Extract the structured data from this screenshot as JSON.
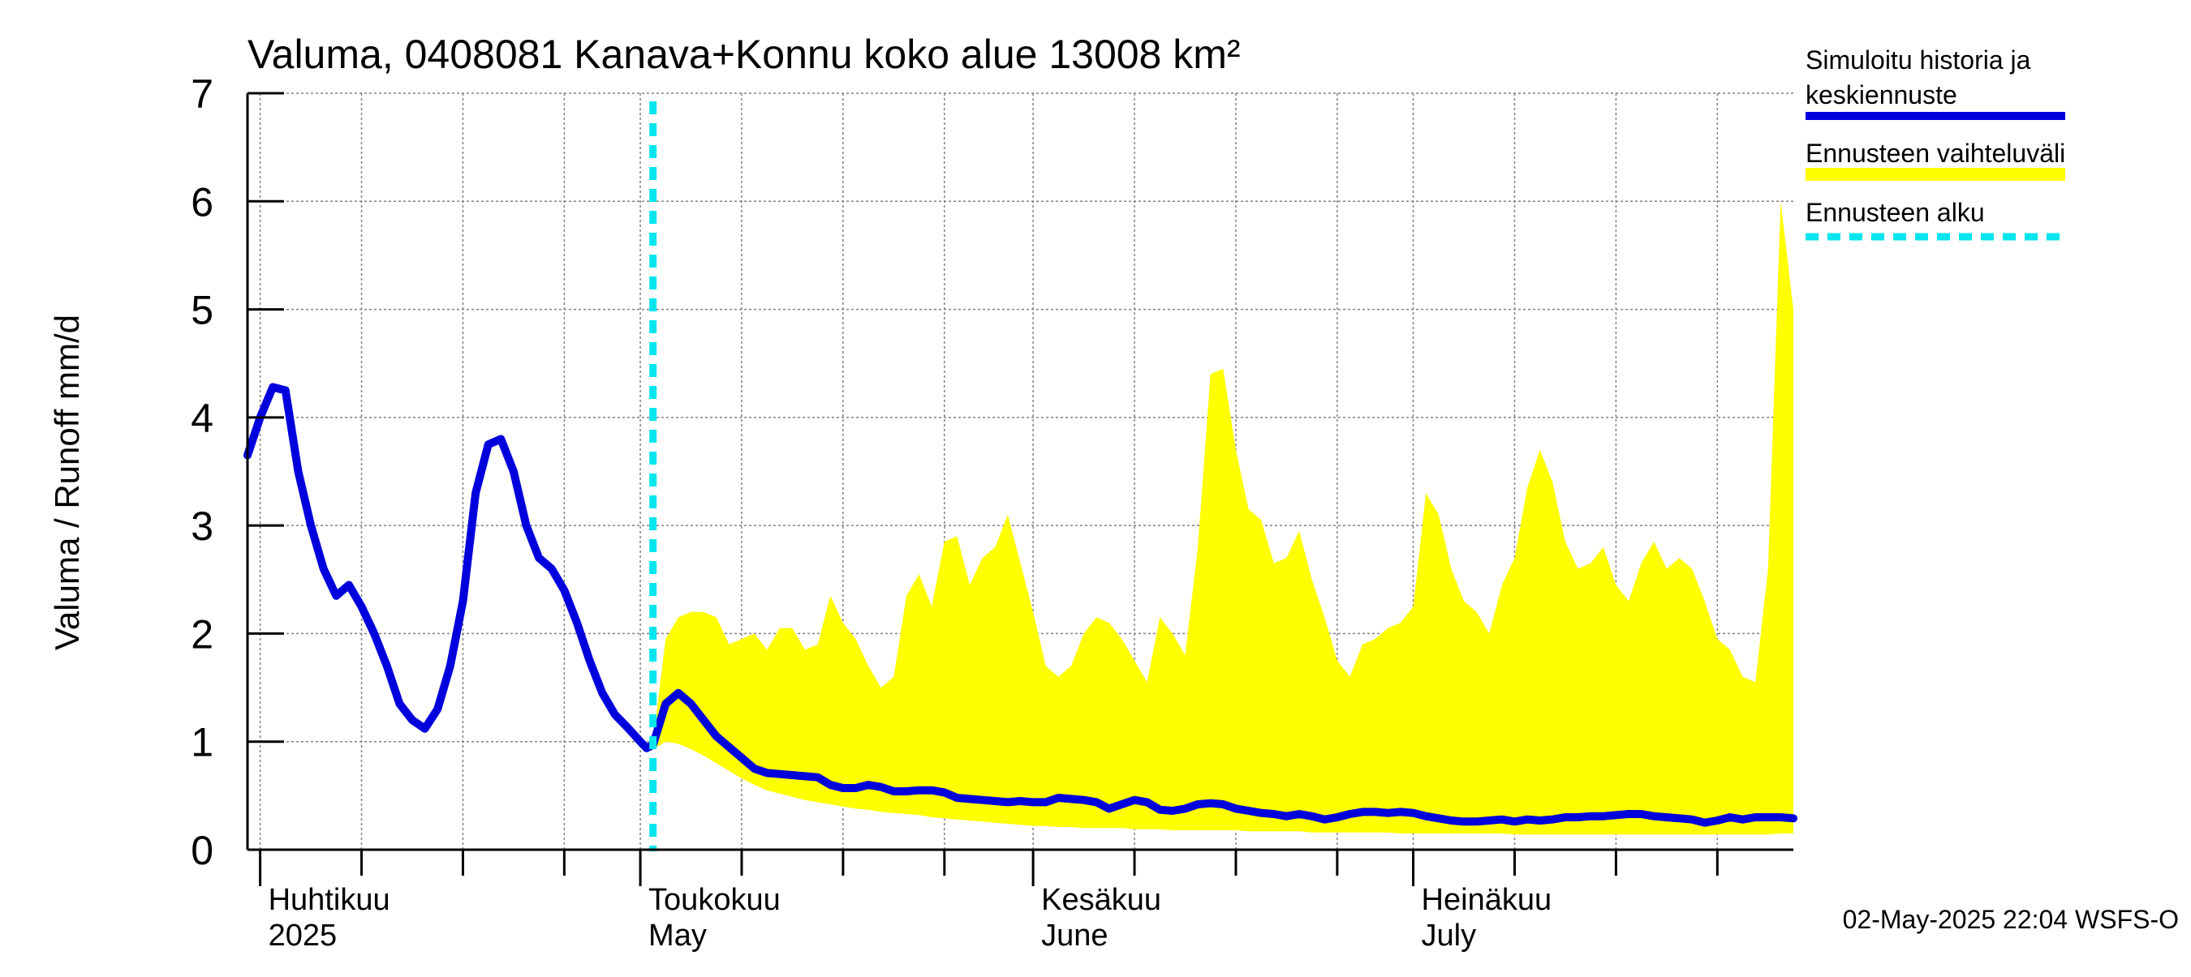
{
  "colors": {
    "background": "#ffffff",
    "history_line": "#0000dd",
    "forecast_band": "#ffff00",
    "forecast_start": "#00e5ee",
    "grid": "#808080",
    "axis": "#000000"
  },
  "chart_data": {
    "type": "line",
    "title": "Valuma, 0408081 Kanava+Konnu koko alue 13008 km²",
    "ylabel": "Valuma / Runoff    mm/d",
    "xlabel": "",
    "ylim": [
      0,
      7
    ],
    "xlim": [
      "2025-03-31",
      "2025-07-31"
    ],
    "y_ticks": [
      0,
      1,
      2,
      3,
      4,
      5,
      6,
      7
    ],
    "grid": true,
    "legend_position": "right",
    "legend": {
      "history_label_line1": "Simuloitu historia ja",
      "history_label_line2": "keskiennuste",
      "band_label": "Ennusteen vaihteluväli",
      "start_label": "Ennusteen alku"
    },
    "month_labels": [
      {
        "date": "2025-04-01",
        "fi": "Huhtikuu",
        "en": "2025"
      },
      {
        "date": "2025-05-01",
        "fi": "Toukokuu",
        "en": "May"
      },
      {
        "date": "2025-06-01",
        "fi": "Kesäkuu",
        "en": "June"
      },
      {
        "date": "2025-07-01",
        "fi": "Heinäkuu",
        "en": "July"
      }
    ],
    "forecast_start": "2025-05-02",
    "timestamp": "02-May-2025 22:04 WSFS-O",
    "series": [
      {
        "name": "Simuloitu historia ja keskiennuste",
        "points": [
          [
            "2025-03-31",
            3.65
          ],
          [
            "2025-04-01",
            4.0
          ],
          [
            "2025-04-02",
            4.28
          ],
          [
            "2025-04-03",
            4.25
          ],
          [
            "2025-04-04",
            3.5
          ],
          [
            "2025-04-05",
            3.0
          ],
          [
            "2025-04-06",
            2.6
          ],
          [
            "2025-04-07",
            2.35
          ],
          [
            "2025-04-08",
            2.45
          ],
          [
            "2025-04-09",
            2.25
          ],
          [
            "2025-04-10",
            2.0
          ],
          [
            "2025-04-11",
            1.7
          ],
          [
            "2025-04-12",
            1.35
          ],
          [
            "2025-04-13",
            1.2
          ],
          [
            "2025-04-14",
            1.12
          ],
          [
            "2025-04-15",
            1.3
          ],
          [
            "2025-04-16",
            1.7
          ],
          [
            "2025-04-17",
            2.3
          ],
          [
            "2025-04-18",
            3.3
          ],
          [
            "2025-04-19",
            3.75
          ],
          [
            "2025-04-20",
            3.8
          ],
          [
            "2025-04-21",
            3.5
          ],
          [
            "2025-04-22",
            3.0
          ],
          [
            "2025-04-23",
            2.7
          ],
          [
            "2025-04-24",
            2.6
          ],
          [
            "2025-04-25",
            2.4
          ],
          [
            "2025-04-26",
            2.1
          ],
          [
            "2025-04-27",
            1.75
          ],
          [
            "2025-04-28",
            1.45
          ],
          [
            "2025-04-29",
            1.25
          ],
          [
            "2025-04-30",
            1.13
          ],
          [
            "2025-05-01",
            1.0
          ],
          [
            "2025-05-01.5",
            0.94
          ],
          [
            "2025-05-02",
            0.97
          ],
          [
            "2025-05-03",
            1.35
          ],
          [
            "2025-05-04",
            1.45
          ],
          [
            "2025-05-05",
            1.35
          ],
          [
            "2025-05-06",
            1.2
          ],
          [
            "2025-05-07",
            1.05
          ],
          [
            "2025-05-08",
            0.95
          ],
          [
            "2025-05-09",
            0.85
          ],
          [
            "2025-05-10",
            0.75
          ],
          [
            "2025-05-11",
            0.71
          ],
          [
            "2025-05-12",
            0.7
          ],
          [
            "2025-05-13",
            0.69
          ],
          [
            "2025-05-14",
            0.68
          ],
          [
            "2025-05-15",
            0.67
          ],
          [
            "2025-05-16",
            0.6
          ],
          [
            "2025-05-17",
            0.57
          ],
          [
            "2025-05-18",
            0.57
          ],
          [
            "2025-05-19",
            0.6
          ],
          [
            "2025-05-20",
            0.58
          ],
          [
            "2025-05-21",
            0.54
          ],
          [
            "2025-05-22",
            0.54
          ],
          [
            "2025-05-23",
            0.55
          ],
          [
            "2025-05-24",
            0.55
          ],
          [
            "2025-05-25",
            0.53
          ],
          [
            "2025-05-26",
            0.48
          ],
          [
            "2025-05-27",
            0.47
          ],
          [
            "2025-05-28",
            0.46
          ],
          [
            "2025-05-29",
            0.45
          ],
          [
            "2025-05-30",
            0.44
          ],
          [
            "2025-05-31",
            0.45
          ],
          [
            "2025-06-01",
            0.44
          ],
          [
            "2025-06-02",
            0.44
          ],
          [
            "2025-06-03",
            0.48
          ],
          [
            "2025-06-04",
            0.47
          ],
          [
            "2025-06-05",
            0.46
          ],
          [
            "2025-06-06",
            0.44
          ],
          [
            "2025-06-07",
            0.38
          ],
          [
            "2025-06-08",
            0.42
          ],
          [
            "2025-06-09",
            0.46
          ],
          [
            "2025-06-10",
            0.44
          ],
          [
            "2025-06-11",
            0.37
          ],
          [
            "2025-06-12",
            0.36
          ],
          [
            "2025-06-13",
            0.38
          ],
          [
            "2025-06-14",
            0.42
          ],
          [
            "2025-06-15",
            0.43
          ],
          [
            "2025-06-16",
            0.42
          ],
          [
            "2025-06-17",
            0.38
          ],
          [
            "2025-06-18",
            0.36
          ],
          [
            "2025-06-19",
            0.34
          ],
          [
            "2025-06-20",
            0.33
          ],
          [
            "2025-06-21",
            0.31
          ],
          [
            "2025-06-22",
            0.33
          ],
          [
            "2025-06-23",
            0.31
          ],
          [
            "2025-06-24",
            0.28
          ],
          [
            "2025-06-25",
            0.3
          ],
          [
            "2025-06-26",
            0.33
          ],
          [
            "2025-06-27",
            0.35
          ],
          [
            "2025-06-28",
            0.35
          ],
          [
            "2025-06-29",
            0.34
          ],
          [
            "2025-06-30",
            0.35
          ],
          [
            "2025-07-01",
            0.34
          ],
          [
            "2025-07-02",
            0.31
          ],
          [
            "2025-07-03",
            0.29
          ],
          [
            "2025-07-04",
            0.27
          ],
          [
            "2025-07-05",
            0.26
          ],
          [
            "2025-07-06",
            0.26
          ],
          [
            "2025-07-07",
            0.27
          ],
          [
            "2025-07-08",
            0.28
          ],
          [
            "2025-07-09",
            0.26
          ],
          [
            "2025-07-10",
            0.28
          ],
          [
            "2025-07-11",
            0.27
          ],
          [
            "2025-07-12",
            0.28
          ],
          [
            "2025-07-13",
            0.3
          ],
          [
            "2025-07-14",
            0.3
          ],
          [
            "2025-07-15",
            0.31
          ],
          [
            "2025-07-16",
            0.31
          ],
          [
            "2025-07-17",
            0.32
          ],
          [
            "2025-07-18",
            0.33
          ],
          [
            "2025-07-19",
            0.33
          ],
          [
            "2025-07-20",
            0.31
          ],
          [
            "2025-07-21",
            0.3
          ],
          [
            "2025-07-22",
            0.29
          ],
          [
            "2025-07-23",
            0.28
          ],
          [
            "2025-07-24",
            0.25
          ],
          [
            "2025-07-25",
            0.27
          ],
          [
            "2025-07-26",
            0.3
          ],
          [
            "2025-07-27",
            0.28
          ],
          [
            "2025-07-28",
            0.3
          ],
          [
            "2025-07-29",
            0.3
          ],
          [
            "2025-07-30",
            0.3
          ],
          [
            "2025-07-31",
            0.29
          ]
        ]
      },
      {
        "name": "Ennusteen vaihteluväli",
        "band": [
          [
            "2025-05-02",
            0.93,
            1.0
          ],
          [
            "2025-05-03",
            1.0,
            1.95
          ],
          [
            "2025-05-04",
            0.98,
            2.15
          ],
          [
            "2025-05-05",
            0.93,
            2.2
          ],
          [
            "2025-05-06",
            0.87,
            2.2
          ],
          [
            "2025-05-07",
            0.8,
            2.15
          ],
          [
            "2025-05-08",
            0.73,
            1.9
          ],
          [
            "2025-05-09",
            0.66,
            1.95
          ],
          [
            "2025-05-10",
            0.6,
            2.0
          ],
          [
            "2025-05-11",
            0.55,
            1.85
          ],
          [
            "2025-05-12",
            0.52,
            2.05
          ],
          [
            "2025-05-13",
            0.49,
            2.05
          ],
          [
            "2025-05-14",
            0.46,
            1.85
          ],
          [
            "2025-05-15",
            0.44,
            1.9
          ],
          [
            "2025-05-16",
            0.42,
            2.35
          ],
          [
            "2025-05-17",
            0.4,
            2.1
          ],
          [
            "2025-05-18",
            0.38,
            1.95
          ],
          [
            "2025-05-19",
            0.37,
            1.7
          ],
          [
            "2025-05-20",
            0.35,
            1.5
          ],
          [
            "2025-05-21",
            0.34,
            1.6
          ],
          [
            "2025-05-22",
            0.33,
            2.35
          ],
          [
            "2025-05-23",
            0.32,
            2.55
          ],
          [
            "2025-05-24",
            0.3,
            2.25
          ],
          [
            "2025-05-25",
            0.29,
            2.85
          ],
          [
            "2025-05-26",
            0.28,
            2.9
          ],
          [
            "2025-05-27",
            0.27,
            2.45
          ],
          [
            "2025-05-28",
            0.26,
            2.7
          ],
          [
            "2025-05-29",
            0.25,
            2.8
          ],
          [
            "2025-05-30",
            0.24,
            3.1
          ],
          [
            "2025-05-31",
            0.23,
            2.65
          ],
          [
            "2025-06-01",
            0.22,
            2.2
          ],
          [
            "2025-06-02",
            0.22,
            1.7
          ],
          [
            "2025-06-03",
            0.21,
            1.6
          ],
          [
            "2025-06-04",
            0.21,
            1.7
          ],
          [
            "2025-06-05",
            0.2,
            2.0
          ],
          [
            "2025-06-06",
            0.2,
            2.15
          ],
          [
            "2025-06-07",
            0.2,
            2.1
          ],
          [
            "2025-06-08",
            0.2,
            1.95
          ],
          [
            "2025-06-09",
            0.19,
            1.75
          ],
          [
            "2025-06-10",
            0.19,
            1.55
          ],
          [
            "2025-06-11",
            0.19,
            2.15
          ],
          [
            "2025-06-12",
            0.18,
            2.0
          ],
          [
            "2025-06-13",
            0.18,
            1.8
          ],
          [
            "2025-06-14",
            0.18,
            2.8
          ],
          [
            "2025-06-15",
            0.18,
            4.4
          ],
          [
            "2025-06-16",
            0.18,
            4.45
          ],
          [
            "2025-06-17",
            0.18,
            3.7
          ],
          [
            "2025-06-18",
            0.17,
            3.15
          ],
          [
            "2025-06-19",
            0.17,
            3.05
          ],
          [
            "2025-06-20",
            0.17,
            2.65
          ],
          [
            "2025-06-21",
            0.17,
            2.7
          ],
          [
            "2025-06-22",
            0.17,
            2.95
          ],
          [
            "2025-06-23",
            0.16,
            2.5
          ],
          [
            "2025-06-24",
            0.16,
            2.15
          ],
          [
            "2025-06-25",
            0.16,
            1.75
          ],
          [
            "2025-06-26",
            0.16,
            1.6
          ],
          [
            "2025-06-27",
            0.16,
            1.9
          ],
          [
            "2025-06-28",
            0.16,
            1.95
          ],
          [
            "2025-06-29",
            0.16,
            2.05
          ],
          [
            "2025-06-30",
            0.15,
            2.1
          ],
          [
            "2025-07-01",
            0.15,
            2.25
          ],
          [
            "2025-07-02",
            0.15,
            3.3
          ],
          [
            "2025-07-03",
            0.15,
            3.1
          ],
          [
            "2025-07-04",
            0.15,
            2.6
          ],
          [
            "2025-07-05",
            0.15,
            2.3
          ],
          [
            "2025-07-06",
            0.15,
            2.2
          ],
          [
            "2025-07-07",
            0.15,
            2.0
          ],
          [
            "2025-07-08",
            0.15,
            2.45
          ],
          [
            "2025-07-09",
            0.14,
            2.7
          ],
          [
            "2025-07-10",
            0.14,
            3.35
          ],
          [
            "2025-07-11",
            0.14,
            3.7
          ],
          [
            "2025-07-12",
            0.14,
            3.4
          ],
          [
            "2025-07-13",
            0.14,
            2.85
          ],
          [
            "2025-07-14",
            0.14,
            2.6
          ],
          [
            "2025-07-15",
            0.14,
            2.65
          ],
          [
            "2025-07-16",
            0.14,
            2.8
          ],
          [
            "2025-07-17",
            0.14,
            2.45
          ],
          [
            "2025-07-18",
            0.14,
            2.3
          ],
          [
            "2025-07-19",
            0.14,
            2.65
          ],
          [
            "2025-07-20",
            0.14,
            2.85
          ],
          [
            "2025-07-21",
            0.14,
            2.6
          ],
          [
            "2025-07-22",
            0.14,
            2.7
          ],
          [
            "2025-07-23",
            0.14,
            2.6
          ],
          [
            "2025-07-24",
            0.14,
            2.3
          ],
          [
            "2025-07-25",
            0.14,
            1.95
          ],
          [
            "2025-07-26",
            0.14,
            1.85
          ],
          [
            "2025-07-27",
            0.14,
            1.6
          ],
          [
            "2025-07-28",
            0.14,
            1.55
          ],
          [
            "2025-07-29",
            0.14,
            2.6
          ],
          [
            "2025-07-30",
            0.15,
            6.0
          ],
          [
            "2025-07-31",
            0.15,
            5.0
          ]
        ]
      }
    ]
  }
}
